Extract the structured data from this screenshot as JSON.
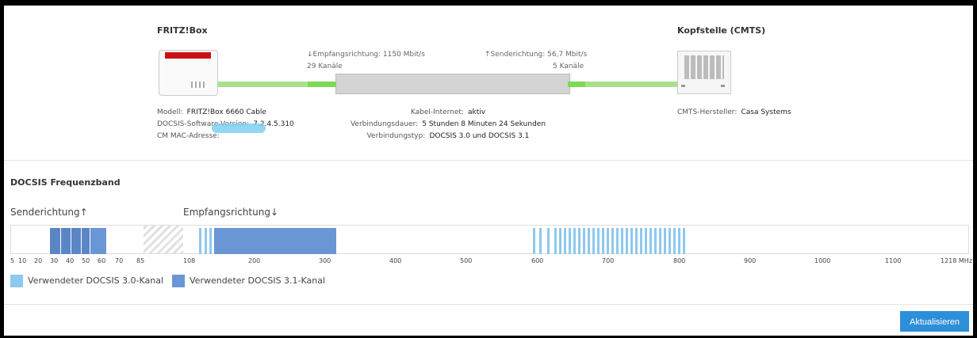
{
  "left_device": {
    "title": "FRITZ!Box",
    "model_label": "Modell:",
    "model_value": "FRITZ!Box 6660 Cable",
    "docsis_sw_label": "DOCSIS-Software-Version:",
    "docsis_sw_value": "7.2.4.5.310",
    "mac_label": "CM MAC-Adresse:"
  },
  "right_device": {
    "title": "Kopfstelle (CMTS)",
    "vendor_label": "CMTS-Hersteller:",
    "vendor_value": "Casa Systems"
  },
  "link": {
    "down_label": "↓Empfangsrichtung: 1150 Mbit/s",
    "down_channels": "29 Kanäle",
    "up_label": "↑Senderichtung: 56,7 Mbit/s",
    "up_channels": "5 Kanäle",
    "cable_label": "Kabel-Internet:",
    "cable_value": "aktiv",
    "duration_label": "Verbindungsdauer:",
    "duration_value": "5 Stunden 8 Minuten 24 Sekunden",
    "type_label": "Verbindungstyp:",
    "type_value": "DOCSIS 3.0 und DOCSIS 3.1"
  },
  "band": {
    "title": "DOCSIS Frequenzband",
    "up_header": "Senderichtung↑",
    "down_header": "Empfangsrichtung↓",
    "up_ticks": [
      "5",
      "10",
      "20",
      "30",
      "40",
      "50",
      "60",
      "70",
      "85"
    ],
    "down_ticks": [
      "108",
      "200",
      "300",
      "400",
      "500",
      "600",
      "700",
      "800",
      "900",
      "1000",
      "1100",
      "1218 MHz"
    ],
    "legend": {
      "docsis30": "Verwendeter DOCSIS 3.0-Kanal",
      "docsis31": "Verwendeter DOCSIS 3.1-Kanal"
    },
    "colors": {
      "docsis30": "#8ec8ee",
      "docsis31": "#6a96d6"
    }
  },
  "actions": {
    "refresh": "Aktualisieren"
  }
}
